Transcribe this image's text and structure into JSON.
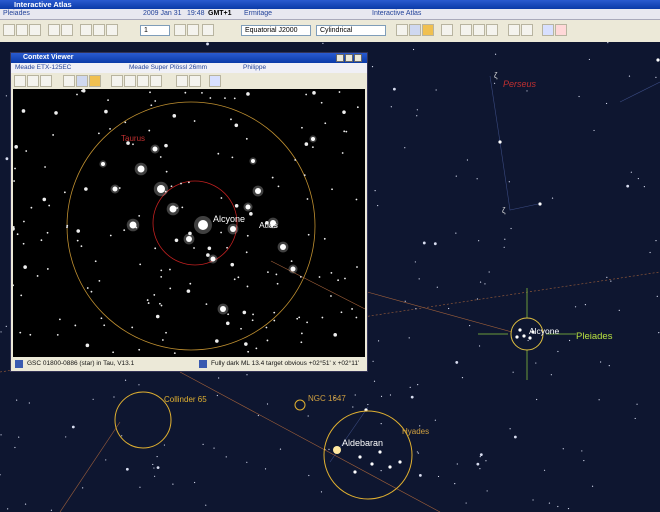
{
  "window": {
    "title": "Interactive Atlas"
  },
  "info_bar": {
    "object": "Pleiades",
    "date": "2009 Jan 31",
    "time": "19:48",
    "timezone": "GMT+1",
    "location": "Ermitage",
    "mode": "Interactive Atlas"
  },
  "toolbar": {
    "step": "1",
    "coordinates": "Equatorial J2000",
    "projection": "Cylindrical"
  },
  "context_viewer": {
    "title": "Context Viewer",
    "telescope": "Meade ETX-125EC",
    "eyepiece": "Meade Super Plössl 26mm",
    "observer": "Philippe",
    "labels": {
      "constellation": "Taurus",
      "star_1": "Alcyone",
      "star_2": "Atlas"
    },
    "status_left": "GSC 01800-0886 (star) in Tau, V13.1",
    "status_right": "Fully dark ML 13.4 target obvious  +02°51' x +02°11'"
  },
  "map": {
    "labels": {
      "constellation": "Perseus",
      "zeta_1": "ζ",
      "zeta_2": "ζ",
      "alcyone": "Alcyone",
      "pleiades": "Pleiades",
      "collinder": "Collinder 65",
      "ngc": "NGC 1647",
      "hyades": "Hyades",
      "aldebaran": "Aldebaran"
    }
  }
}
